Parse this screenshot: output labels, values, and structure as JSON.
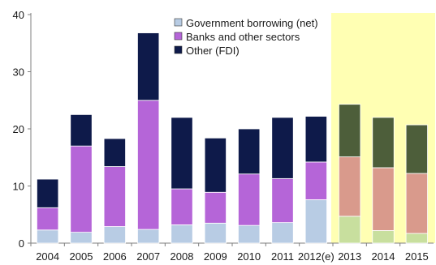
{
  "chart_data": {
    "type": "bar",
    "stacked": true,
    "categories": [
      "2004",
      "2005",
      "2006",
      "2007",
      "2008",
      "2009",
      "2010",
      "2011",
      "2012(e)",
      "2013",
      "2014",
      "2015"
    ],
    "series": [
      {
        "name": "Government borrowing (net)",
        "values": [
          2.3,
          1.9,
          2.9,
          2.4,
          3.2,
          3.5,
          3.1,
          3.6,
          7.6,
          4.7,
          2.2,
          1.7
        ]
      },
      {
        "name": "Banks and other sectors",
        "values": [
          3.9,
          15.1,
          10.5,
          22.6,
          6.3,
          5.4,
          9.0,
          7.7,
          6.6,
          10.4,
          11.0,
          10.5
        ]
      },
      {
        "name": "Other (FDI)",
        "values": [
          5.0,
          5.5,
          4.9,
          11.8,
          12.5,
          9.5,
          7.9,
          10.7,
          8.0,
          9.2,
          8.8,
          8.5
        ]
      }
    ],
    "colors": {
      "actual": [
        "#b8cce4",
        "#b565d8",
        "#0e1a4a"
      ],
      "forecast": [
        "#c8df9e",
        "#d99a8c",
        "#4d5e3a"
      ],
      "forecast_band": "#ffffb3"
    },
    "forecast_start_category": "2013",
    "ylim": [
      0,
      40
    ],
    "yticks": [
      0,
      10,
      20,
      30,
      40
    ],
    "grid": false,
    "legend": "top-center",
    "xlabel": "",
    "ylabel": "",
    "title": ""
  }
}
